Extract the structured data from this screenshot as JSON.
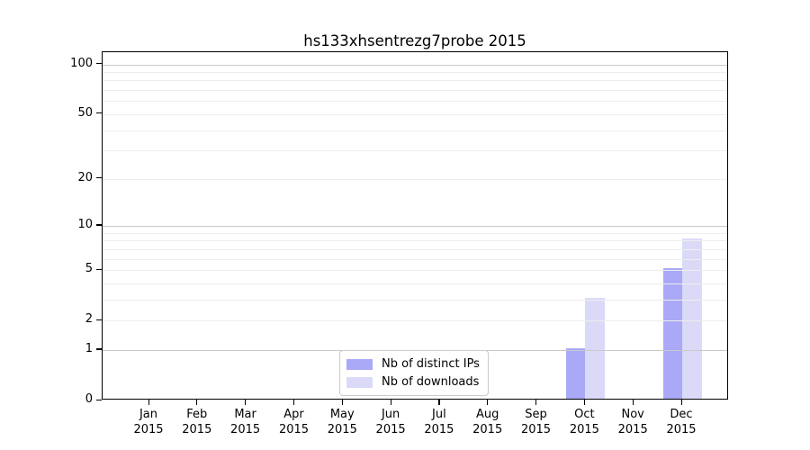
{
  "figure": {
    "title": "hs133xhsentrezg7probe 2015"
  },
  "chart_data": {
    "type": "bar",
    "title": "hs133xhsentrezg7probe 2015",
    "categories": [
      {
        "month": "Jan",
        "year": "2015"
      },
      {
        "month": "Feb",
        "year": "2015"
      },
      {
        "month": "Mar",
        "year": "2015"
      },
      {
        "month": "Apr",
        "year": "2015"
      },
      {
        "month": "May",
        "year": "2015"
      },
      {
        "month": "Jun",
        "year": "2015"
      },
      {
        "month": "Jul",
        "year": "2015"
      },
      {
        "month": "Aug",
        "year": "2015"
      },
      {
        "month": "Sep",
        "year": "2015"
      },
      {
        "month": "Oct",
        "year": "2015"
      },
      {
        "month": "Nov",
        "year": "2015"
      },
      {
        "month": "Dec",
        "year": "2015"
      }
    ],
    "series": [
      {
        "name": "Nb of distinct IPs",
        "color": "#a9a9f7",
        "values": [
          0,
          0,
          0,
          0,
          0,
          0,
          0,
          0,
          0,
          1,
          0,
          5
        ]
      },
      {
        "name": "Nb of downloads",
        "color": "#dadaf8",
        "values": [
          0,
          0,
          0,
          0,
          0,
          0,
          0,
          0,
          0,
          3,
          0,
          8
        ]
      }
    ],
    "xlabel": "",
    "ylabel": "",
    "yscale": "log1p",
    "ylim": [
      0,
      100
    ],
    "yticks": [
      0,
      1,
      2,
      5,
      10,
      20,
      50,
      100
    ],
    "grid": {
      "major_values": [
        1,
        10,
        100
      ],
      "minor_values": [
        2,
        3,
        4,
        5,
        6,
        7,
        8,
        9,
        20,
        30,
        40,
        50,
        60,
        70,
        80,
        90
      ]
    },
    "legend_position": "lower center"
  },
  "colors": {
    "background": "#ffffff",
    "axis": "#000000",
    "grid_major": "#c9c9c9",
    "grid_minor": "#ededed",
    "legend_border": "#cccccc",
    "bar_distinct_ips": "#a9a9f7",
    "bar_downloads": "#dadaf8"
  }
}
